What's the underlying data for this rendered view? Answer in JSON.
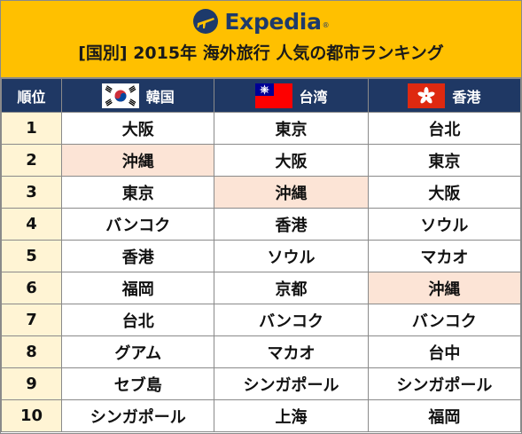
{
  "brand": {
    "name": "Expedia",
    "trademark": "®",
    "logo_icon": "globe-plane-icon"
  },
  "title": "[国別] 2015年 海外旅行 人気の都市ランキング",
  "colors": {
    "header_bg": "#ffc000",
    "column_header_bg": "#1f3864",
    "rank_cell_bg": "#fff4d4",
    "highlight_bg": "#fce4d6",
    "highlight_text": "#c00000"
  },
  "columns": {
    "rank": "順位",
    "korea": {
      "label": "韓国",
      "flag": "south-korea-flag-icon"
    },
    "taiwan": {
      "label": "台湾",
      "flag": "taiwan-flag-icon"
    },
    "hongkong": {
      "label": "香港",
      "flag": "hong-kong-flag-icon"
    }
  },
  "rows": [
    {
      "rank": "1",
      "korea": "大阪",
      "taiwan": "東京",
      "hongkong": "台北"
    },
    {
      "rank": "2",
      "korea": "沖縄",
      "taiwan": "大阪",
      "hongkong": "東京"
    },
    {
      "rank": "3",
      "korea": "東京",
      "taiwan": "沖縄",
      "hongkong": "大阪"
    },
    {
      "rank": "4",
      "korea": "バンコク",
      "taiwan": "香港",
      "hongkong": "ソウル"
    },
    {
      "rank": "5",
      "korea": "香港",
      "taiwan": "ソウル",
      "hongkong": "マカオ"
    },
    {
      "rank": "6",
      "korea": "福岡",
      "taiwan": "京都",
      "hongkong": "沖縄"
    },
    {
      "rank": "7",
      "korea": "台北",
      "taiwan": "バンコク",
      "hongkong": "バンコク"
    },
    {
      "rank": "8",
      "korea": "グアム",
      "taiwan": "マカオ",
      "hongkong": "台中"
    },
    {
      "rank": "9",
      "korea": "セブ島",
      "taiwan": "シンガポール",
      "hongkong": "シンガポール"
    },
    {
      "rank": "10",
      "korea": "シンガポール",
      "taiwan": "上海",
      "hongkong": "福岡"
    }
  ],
  "highlight_city": "沖縄"
}
